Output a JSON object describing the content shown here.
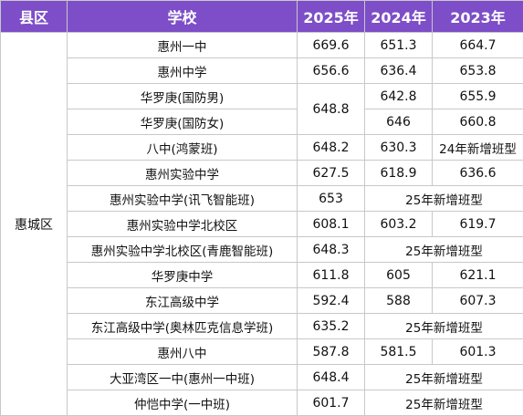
{
  "table": {
    "headers": {
      "district": "县区",
      "school": "学校",
      "y2025": "2025年",
      "y2024": "2024年",
      "y2023": "2023年"
    },
    "district": "惠城区",
    "merged_score_2025": "648.8",
    "new_class_2025": "25年新增班型",
    "new_class_2024": "24年新增班型",
    "rows": [
      {
        "school": "惠州一中",
        "y2025": "669.6",
        "y2024": "651.3",
        "y2023": "664.7"
      },
      {
        "school": "惠州中学",
        "y2025": "656.6",
        "y2024": "636.4",
        "y2023": "653.8"
      },
      {
        "school": "华罗庚(国防男)",
        "y2024": "642.8",
        "y2023": "655.9"
      },
      {
        "school": "华罗庚(国防女)",
        "y2024": "646",
        "y2023": "660.8"
      },
      {
        "school": "八中(鸿蒙班)",
        "y2025": "648.2",
        "y2024": "630.3"
      },
      {
        "school": "惠州实验中学",
        "y2025": "627.5",
        "y2024": "618.9",
        "y2023": "636.6"
      },
      {
        "school": "惠州实验中学(讯飞智能班)",
        "y2025": "653"
      },
      {
        "school": "惠州实验中学北校区",
        "y2025": "608.1",
        "y2024": "603.2",
        "y2023": "619.7"
      },
      {
        "school": "惠州实验中学北校区(青鹿智能班)",
        "y2025": "648.3"
      },
      {
        "school": "华罗庚中学",
        "y2025": "611.8",
        "y2024": "605",
        "y2023": "621.1"
      },
      {
        "school": "东江高级中学",
        "y2025": "592.4",
        "y2024": "588",
        "y2023": "607.3"
      },
      {
        "school": "东江高级中学(奥林匹克信息学班)",
        "y2025": "635.2"
      },
      {
        "school": "惠州八中",
        "y2025": "587.8",
        "y2024": "581.5",
        "y2023": "601.3"
      },
      {
        "school": "大亚湾区一中(惠州一中班)",
        "y2025": "648.4"
      },
      {
        "school": "仲恺中学(一中班)",
        "y2025": "601.7"
      }
    ]
  }
}
